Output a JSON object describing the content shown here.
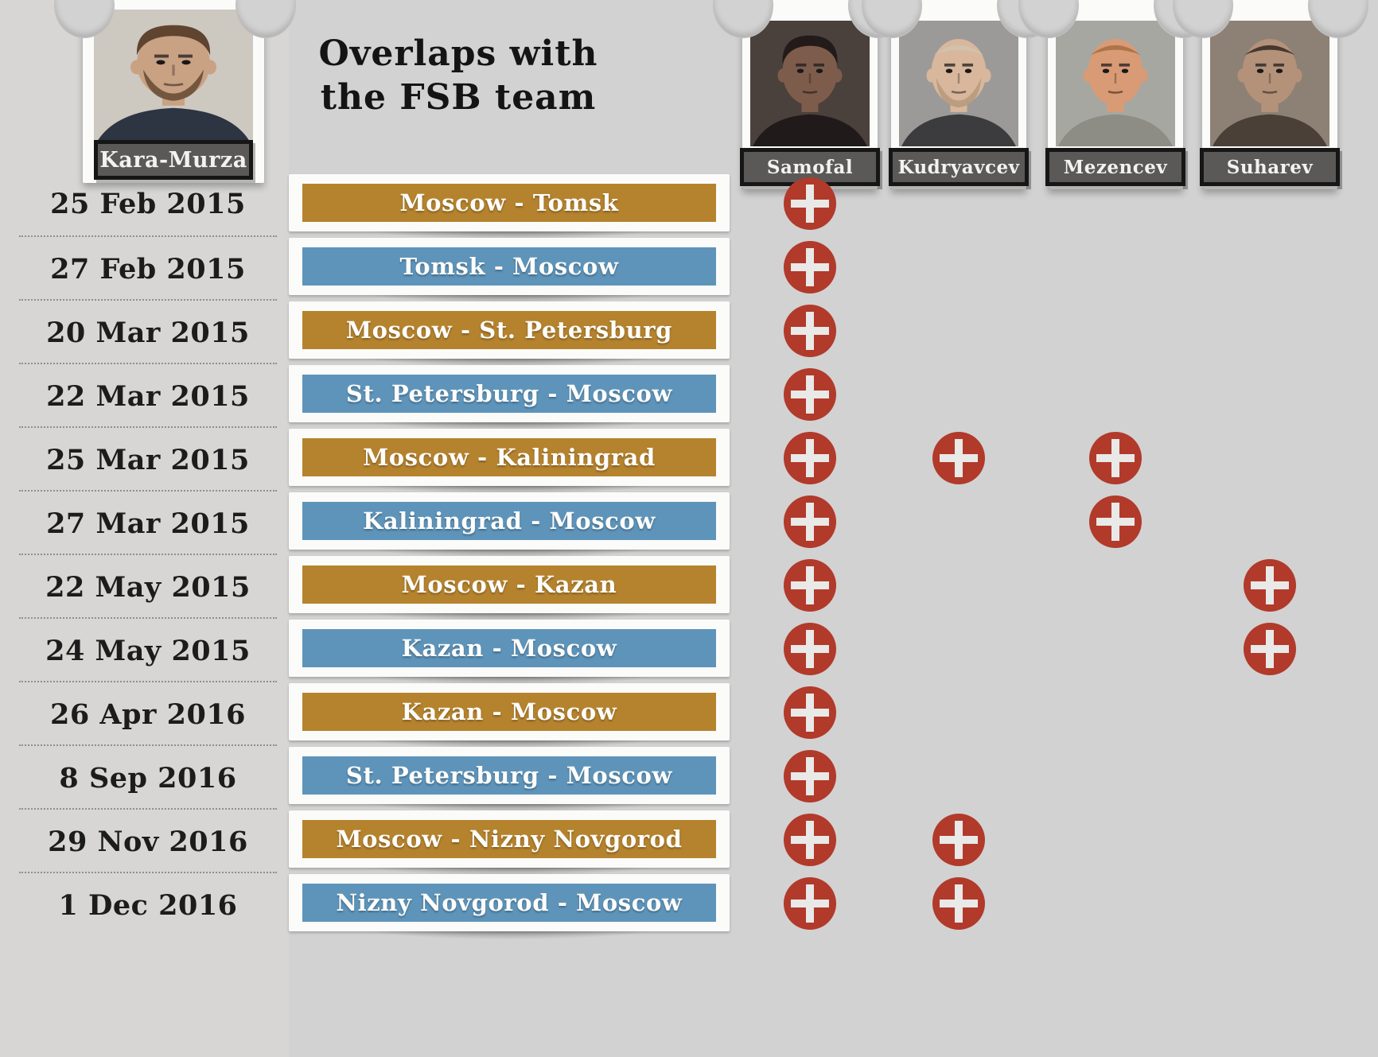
{
  "title": {
    "line1": "Overlaps with",
    "line2": "the FSB team"
  },
  "subject": {
    "name": "Kara-Murza",
    "portrait": {
      "bg": "#cdc8c0",
      "skin": "#c9a183",
      "hair": "#5f4430",
      "shirt": "#2d3442",
      "bald": false,
      "beard": "#6b4f38"
    }
  },
  "team": [
    {
      "name": "Samofal",
      "portrait": {
        "bg": "#4a403c",
        "skin": "#7e5c4c",
        "hair": "#221b19",
        "shirt": "#201b1a",
        "bald": false,
        "beard": null
      }
    },
    {
      "name": "Kudryavcev",
      "portrait": {
        "bg": "#9b9a98",
        "skin": "#d8b79c",
        "hair": "#cfc3b0",
        "shirt": "#3c3c3e",
        "bald": true,
        "beard": "#b99a7e"
      }
    },
    {
      "name": "Mezencev",
      "portrait": {
        "bg": "#a7a7a1",
        "skin": "#d99a76",
        "hair": "#a96f42",
        "shirt": "#8d8d85",
        "bald": true,
        "beard": null
      }
    },
    {
      "name": "Suharev",
      "portrait": {
        "bg": "#8d8175",
        "skin": "#b4927a",
        "hair": "#3a2f28",
        "shirt": "#4a4038",
        "bald": true,
        "beard": null
      }
    }
  ],
  "colors": {
    "outbound_gold": "#b5832e",
    "return_blue": "#5e94ba",
    "plus_red": "#b13a2b",
    "background": "#d2d2d2",
    "label_bg": "#5a5958"
  },
  "rows": [
    {
      "date": "25 Feb 2015",
      "route": "Moscow - Tomsk",
      "direction": "gold",
      "overlaps": [
        "Samofal"
      ]
    },
    {
      "date": "27 Feb 2015",
      "route": "Tomsk - Moscow",
      "direction": "blue",
      "overlaps": [
        "Samofal"
      ]
    },
    {
      "date": "20 Mar 2015",
      "route": "Moscow - St. Petersburg",
      "direction": "gold",
      "overlaps": [
        "Samofal"
      ]
    },
    {
      "date": "22 Mar 2015",
      "route": "St. Petersburg - Moscow",
      "direction": "blue",
      "overlaps": [
        "Samofal"
      ]
    },
    {
      "date": "25 Mar 2015",
      "route": "Moscow - Kaliningrad",
      "direction": "gold",
      "overlaps": [
        "Samofal",
        "Kudryavcev",
        "Mezencev"
      ]
    },
    {
      "date": "27 Mar 2015",
      "route": "Kaliningrad - Moscow",
      "direction": "blue",
      "overlaps": [
        "Samofal",
        "Mezencev"
      ]
    },
    {
      "date": "22 May 2015",
      "route": "Moscow - Kazan",
      "direction": "gold",
      "overlaps": [
        "Samofal",
        "Suharev"
      ]
    },
    {
      "date": "24 May 2015",
      "route": "Kazan - Moscow",
      "direction": "blue",
      "overlaps": [
        "Samofal",
        "Suharev"
      ]
    },
    {
      "date": "26 Apr 2016",
      "route": "Kazan - Moscow",
      "direction": "gold",
      "overlaps": [
        "Samofal"
      ]
    },
    {
      "date": "8 Sep 2016",
      "route": "St. Petersburg - Moscow",
      "direction": "blue",
      "overlaps": [
        "Samofal"
      ]
    },
    {
      "date": "29 Nov 2016",
      "route": "Moscow - Nizny Novgorod",
      "direction": "gold",
      "overlaps": [
        "Samofal",
        "Kudryavcev"
      ]
    },
    {
      "date": "1 Dec 2016",
      "route": "Nizny Novgorod - Moscow",
      "direction": "blue",
      "overlaps": [
        "Samofal",
        "Kudryavcev"
      ]
    }
  ]
}
